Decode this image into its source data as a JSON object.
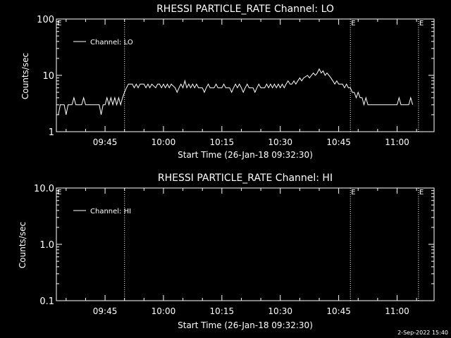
{
  "colors": {
    "background": "#000000",
    "foreground": "#ffffff"
  },
  "footer": {
    "timestamp": "2-Sep-2022 15:40"
  },
  "chart_data": [
    {
      "type": "line",
      "title": "RHESSI PARTICLE_RATE Channel: LO",
      "xlabel": "Start Time (26-Jan-18 09:32:30)",
      "ylabel": "Counts/sec",
      "yscale": "log",
      "ylim": [
        1,
        100
      ],
      "ytick_labels": [
        "1",
        "10",
        "100"
      ],
      "xlim": [
        "09:32:30",
        "11:09:30"
      ],
      "xtick_labels": [
        "09:45",
        "10:00",
        "10:15",
        "10:30",
        "10:45",
        "11:00"
      ],
      "legend": {
        "placement": "top-left",
        "entries": [
          "Channel: LO"
        ]
      },
      "event_markers": [
        {
          "time": "09:50:00",
          "label": ""
        },
        {
          "time": "10:48:00",
          "label": "E"
        },
        {
          "time": "11:05:30",
          "label": "E"
        }
      ],
      "edge_marker_label": "E",
      "series": [
        {
          "name": "Channel: LO",
          "points": [
            [
              "09:33:00",
              2
            ],
            [
              "09:33:30",
              3
            ],
            [
              "09:34:30",
              3
            ],
            [
              "09:35:00",
              2
            ],
            [
              "09:35:30",
              3
            ],
            [
              "09:36:30",
              3
            ],
            [
              "09:37:00",
              4
            ],
            [
              "09:37:30",
              3
            ],
            [
              "09:38:30",
              3
            ],
            [
              "09:39:00",
              3
            ],
            [
              "09:39:30",
              4
            ],
            [
              "09:40:00",
              3
            ],
            [
              "09:40:30",
              3
            ],
            [
              "09:41:00",
              3
            ],
            [
              "09:41:30",
              3
            ],
            [
              "09:42:00",
              3
            ],
            [
              "09:42:30",
              3
            ],
            [
              "09:43:00",
              3
            ],
            [
              "09:43:30",
              3
            ],
            [
              "09:44:00",
              2
            ],
            [
              "09:44:30",
              3
            ],
            [
              "09:45:00",
              3
            ],
            [
              "09:45:30",
              4
            ],
            [
              "09:46:00",
              3
            ],
            [
              "09:46:30",
              4
            ],
            [
              "09:47:00",
              3
            ],
            [
              "09:47:30",
              4
            ],
            [
              "09:48:00",
              3
            ],
            [
              "09:48:30",
              4
            ],
            [
              "09:49:00",
              3
            ],
            [
              "09:49:30",
              4
            ],
            [
              "09:50:00",
              5
            ],
            [
              "09:50:30",
              6
            ],
            [
              "09:51:00",
              7
            ],
            [
              "09:52:00",
              7
            ],
            [
              "09:52:30",
              6
            ],
            [
              "09:53:00",
              7
            ],
            [
              "09:53:30",
              6
            ],
            [
              "09:54:00",
              7
            ],
            [
              "09:55:00",
              7
            ],
            [
              "09:55:30",
              6
            ],
            [
              "09:56:00",
              7
            ],
            [
              "09:56:30",
              6
            ],
            [
              "09:57:00",
              7
            ],
            [
              "09:58:00",
              6
            ],
            [
              "09:58:30",
              7
            ],
            [
              "09:59:00",
              7
            ],
            [
              "09:59:30",
              6
            ],
            [
              "10:00:00",
              7
            ],
            [
              "10:00:30",
              6
            ],
            [
              "10:01:00",
              7
            ],
            [
              "10:01:30",
              6
            ],
            [
              "10:02:00",
              7
            ],
            [
              "10:03:00",
              6
            ],
            [
              "10:03:30",
              5
            ],
            [
              "10:04:00",
              6
            ],
            [
              "10:04:30",
              7
            ],
            [
              "10:05:00",
              6
            ],
            [
              "10:05:30",
              8
            ],
            [
              "10:06:00",
              6
            ],
            [
              "10:06:30",
              7
            ],
            [
              "10:07:00",
              6
            ],
            [
              "10:07:30",
              7
            ],
            [
              "10:08:00",
              6
            ],
            [
              "10:08:30",
              7
            ],
            [
              "10:09:00",
              6
            ],
            [
              "10:10:00",
              6
            ],
            [
              "10:10:30",
              5
            ],
            [
              "10:11:00",
              6
            ],
            [
              "10:11:30",
              7
            ],
            [
              "10:12:00",
              6
            ],
            [
              "10:13:00",
              6
            ],
            [
              "10:13:30",
              7
            ],
            [
              "10:14:00",
              6
            ],
            [
              "10:15:00",
              6
            ],
            [
              "10:15:30",
              7
            ],
            [
              "10:16:00",
              6
            ],
            [
              "10:17:00",
              6
            ],
            [
              "10:17:30",
              5
            ],
            [
              "10:18:00",
              6
            ],
            [
              "10:18:30",
              7
            ],
            [
              "10:19:00",
              6
            ],
            [
              "10:19:30",
              7
            ],
            [
              "10:20:00",
              6
            ],
            [
              "10:20:30",
              5
            ],
            [
              "10:21:00",
              6
            ],
            [
              "10:21:30",
              7
            ],
            [
              "10:22:00",
              6
            ],
            [
              "10:23:00",
              6
            ],
            [
              "10:23:30",
              5
            ],
            [
              "10:24:00",
              6
            ],
            [
              "10:24:30",
              7
            ],
            [
              "10:25:00",
              6
            ],
            [
              "10:26:00",
              6
            ],
            [
              "10:26:30",
              7
            ],
            [
              "10:27:00",
              6
            ],
            [
              "10:27:30",
              7
            ],
            [
              "10:28:00",
              6
            ],
            [
              "10:28:30",
              7
            ],
            [
              "10:29:00",
              6
            ],
            [
              "10:29:30",
              7
            ],
            [
              "10:30:00",
              6
            ],
            [
              "10:30:30",
              7
            ],
            [
              "10:31:00",
              6
            ],
            [
              "10:31:30",
              7
            ],
            [
              "10:32:00",
              8
            ],
            [
              "10:32:30",
              7
            ],
            [
              "10:33:00",
              7
            ],
            [
              "10:33:30",
              8
            ],
            [
              "10:34:00",
              7
            ],
            [
              "10:34:30",
              8
            ],
            [
              "10:35:00",
              9
            ],
            [
              "10:35:30",
              8
            ],
            [
              "10:36:00",
              9
            ],
            [
              "10:37:00",
              10
            ],
            [
              "10:37:30",
              9
            ],
            [
              "10:38:00",
              10
            ],
            [
              "10:38:30",
              11
            ],
            [
              "10:39:00",
              10
            ],
            [
              "10:39:30",
              11
            ],
            [
              "10:40:00",
              13
            ],
            [
              "10:40:30",
              11
            ],
            [
              "10:41:00",
              12
            ],
            [
              "10:41:30",
              10
            ],
            [
              "10:42:00",
              11
            ],
            [
              "10:42:30",
              10
            ],
            [
              "10:43:00",
              9
            ],
            [
              "10:43:30",
              8
            ],
            [
              "10:44:00",
              7
            ],
            [
              "10:44:30",
              8
            ],
            [
              "10:45:00",
              7
            ],
            [
              "10:46:00",
              7
            ],
            [
              "10:46:30",
              6
            ],
            [
              "10:47:00",
              7
            ],
            [
              "10:47:30",
              6
            ],
            [
              "10:48:00",
              6
            ],
            [
              "10:48:30",
              5
            ],
            [
              "10:49:00",
              5
            ],
            [
              "10:49:30",
              4
            ],
            [
              "10:50:00",
              5
            ],
            [
              "10:50:30",
              4
            ],
            [
              "10:51:00",
              4
            ],
            [
              "10:51:30",
              3
            ],
            [
              "10:52:00",
              4
            ],
            [
              "10:52:30",
              3
            ],
            [
              "10:53:00",
              3
            ],
            [
              "10:54:00",
              3
            ],
            [
              "10:55:00",
              3
            ],
            [
              "10:56:00",
              3
            ],
            [
              "10:57:00",
              3
            ],
            [
              "10:58:00",
              3
            ],
            [
              "10:59:00",
              3
            ],
            [
              "11:00:00",
              3
            ],
            [
              "11:00:30",
              4
            ],
            [
              "11:01:00",
              3
            ],
            [
              "11:02:00",
              3
            ],
            [
              "11:03:00",
              3
            ],
            [
              "11:03:30",
              4
            ],
            [
              "11:04:00",
              3
            ]
          ]
        }
      ]
    },
    {
      "type": "line",
      "title": "RHESSI PARTICLE_RATE Channel: HI",
      "xlabel": "Start Time (26-Jan-18 09:32:30)",
      "ylabel": "Counts/sec",
      "yscale": "log",
      "ylim": [
        0.1,
        10
      ],
      "ytick_labels": [
        "0.1",
        "1.0",
        "10.0"
      ],
      "xlim": [
        "09:32:30",
        "11:09:30"
      ],
      "xtick_labels": [
        "09:45",
        "10:00",
        "10:15",
        "10:30",
        "10:45",
        "11:00"
      ],
      "legend": {
        "placement": "top-left",
        "entries": [
          "Channel: HI"
        ]
      },
      "event_markers": [
        {
          "time": "09:50:00",
          "label": ""
        },
        {
          "time": "10:48:00",
          "label": "E"
        },
        {
          "time": "11:05:30",
          "label": "E"
        }
      ],
      "edge_marker_label": "E",
      "series": [
        {
          "name": "Channel: HI",
          "points": []
        }
      ]
    }
  ]
}
